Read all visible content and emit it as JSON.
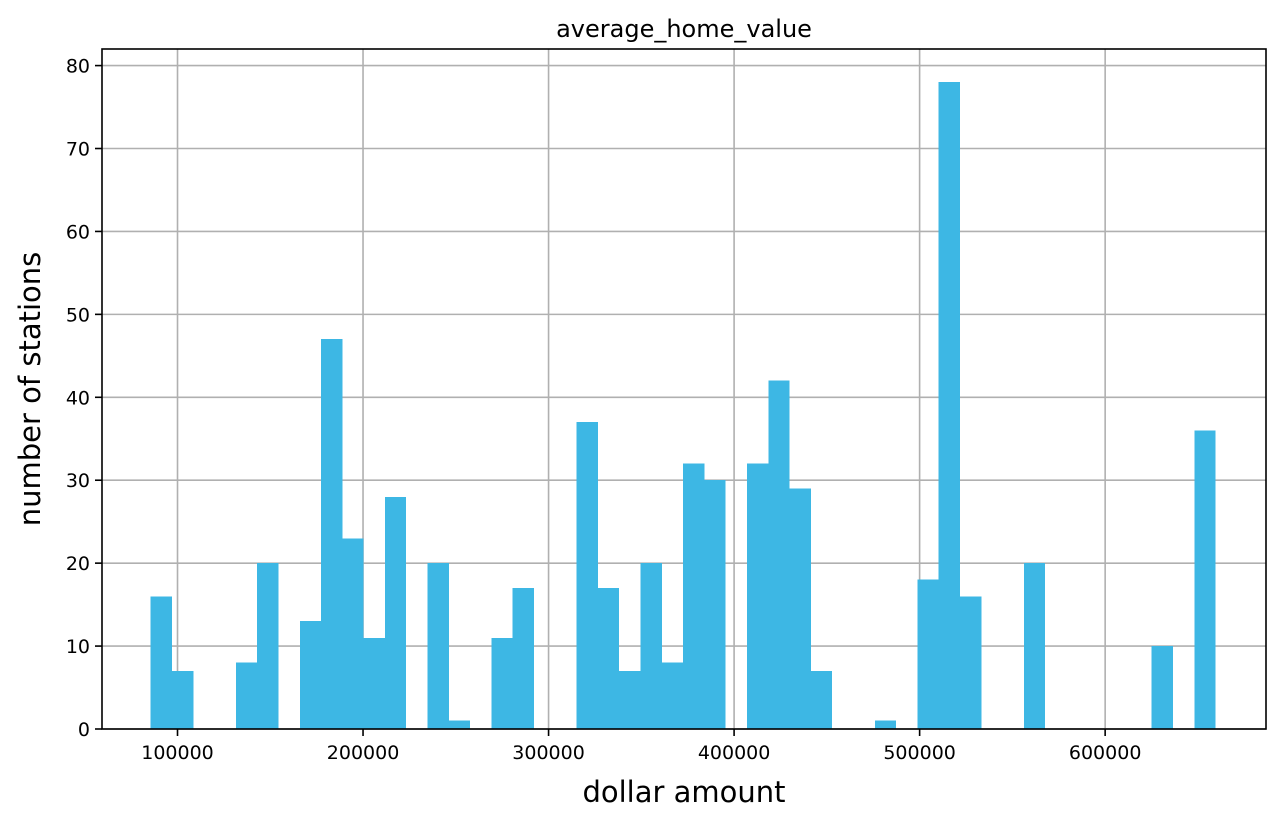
{
  "chart_data": {
    "type": "bar",
    "title": "average_home_value",
    "xlabel": "dollar amount",
    "ylabel": "number of stations",
    "xlim": [
      59300,
      686700
    ],
    "ylim": [
      0,
      82
    ],
    "grid": true,
    "bar_color": "#3db7e4",
    "bin_width": 11480,
    "x_ticks": [
      100000,
      200000,
      300000,
      400000,
      500000,
      600000
    ],
    "y_ticks": [
      0,
      10,
      20,
      30,
      40,
      50,
      60,
      70,
      80
    ],
    "bin_starts": [
      85530,
      97010,
      108490,
      119970,
      131450,
      142930,
      154410,
      165890,
      177370,
      188850,
      200330,
      211810,
      223290,
      234770,
      246250,
      257730,
      269210,
      280690,
      292170,
      303650,
      315130,
      326610,
      338090,
      349570,
      361050,
      372530,
      384010,
      395490,
      406970,
      418450,
      429930,
      441410,
      452890,
      464370,
      475850,
      487330,
      498810,
      510290,
      521770,
      533250,
      544730,
      556210,
      567690,
      579170,
      590650,
      602130,
      613610,
      625090,
      636570,
      648050
    ],
    "values": [
      16,
      7,
      0,
      0,
      8,
      20,
      0,
      13,
      47,
      23,
      11,
      28,
      0,
      20,
      1,
      0,
      11,
      17,
      0,
      0,
      37,
      17,
      7,
      20,
      8,
      32,
      30,
      0,
      32,
      42,
      29,
      7,
      0,
      0,
      1,
      0,
      18,
      78,
      16,
      0,
      0,
      20,
      0,
      0,
      0,
      0,
      0,
      10,
      0,
      36
    ]
  }
}
